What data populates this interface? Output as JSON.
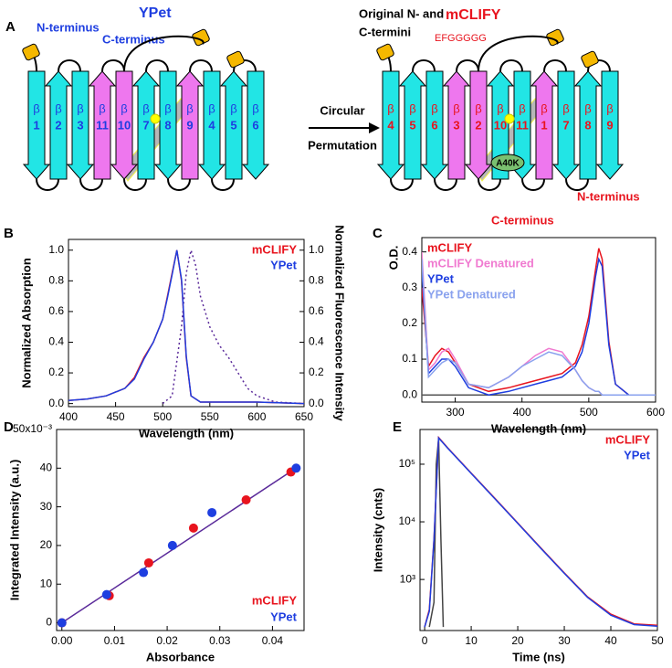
{
  "diagram": {
    "panel": "A",
    "beta": "β",
    "ypet": {
      "title": "YPet",
      "n_terminus": "N-terminus",
      "c_terminus": "C-terminus",
      "strands": [
        {
          "label": "1",
          "color": "#22e5e5"
        },
        {
          "label": "2",
          "color": "#22e5e5"
        },
        {
          "label": "3",
          "color": "#22e5e5"
        },
        {
          "label": "11",
          "color": "#ee77ee"
        },
        {
          "label": "10",
          "color": "#ee77ee"
        },
        {
          "label": "7",
          "color": "#22e5e5"
        },
        {
          "label": "8",
          "color": "#22e5e5"
        },
        {
          "label": "9",
          "color": "#ee77ee"
        },
        {
          "label": "4",
          "color": "#22e5e5"
        },
        {
          "label": "5",
          "color": "#22e5e5"
        },
        {
          "label": "6",
          "color": "#22e5e5"
        }
      ]
    },
    "arrow": {
      "line1": "Circular",
      "line2": "Permutation"
    },
    "mclify": {
      "title": "mCLIFY",
      "note_line1": "Original N- and",
      "note_line2": "C-termini",
      "linker": "EFGGGGG",
      "mutation": "A40K",
      "n_terminus": "N-terminus",
      "c_terminus": "C-terminus",
      "strands": [
        {
          "label": "4",
          "color": "#22e5e5"
        },
        {
          "label": "5",
          "color": "#22e5e5"
        },
        {
          "label": "6",
          "color": "#22e5e5"
        },
        {
          "label": "3",
          "color": "#ee77ee"
        },
        {
          "label": "2",
          "color": "#ee77ee"
        },
        {
          "label": "10",
          "color": "#22e5e5"
        },
        {
          "label": "11",
          "color": "#22e5e5"
        },
        {
          "label": "1",
          "color": "#ee77ee"
        },
        {
          "label": "7",
          "color": "#22e5e5"
        },
        {
          "label": "8",
          "color": "#22e5e5"
        },
        {
          "label": "9",
          "color": "#22e5e5"
        }
      ]
    }
  },
  "chart_data": [
    {
      "type": "line",
      "panel": "B",
      "ylabel": "Normalized Absorption",
      "y2label": "Normalized Fluorescence Intensity",
      "xlabel": "Wavelength (nm)",
      "xlim": [
        400,
        650
      ],
      "xticks": [
        400,
        450,
        500,
        550,
        600,
        650
      ],
      "ylim": [
        -0.02,
        1.07
      ],
      "yticks": [
        {
          "value": 0,
          "label": "0.0"
        },
        {
          "value": 0.2,
          "label": "0.2"
        },
        {
          "value": 0.4,
          "label": "0.4"
        },
        {
          "value": 0.6,
          "label": "0.6"
        },
        {
          "value": 0.8,
          "label": "0.8"
        },
        {
          "value": 1,
          "label": "1.0"
        }
      ],
      "y2lim": [
        -0.02,
        1.07
      ],
      "y2ticks": [
        {
          "value": 0,
          "label": "0.0"
        },
        {
          "value": 0.2,
          "label": "0.2"
        },
        {
          "value": 0.4,
          "label": "0.4"
        },
        {
          "value": 0.6,
          "label": "0.6"
        },
        {
          "value": 0.8,
          "label": "0.8"
        },
        {
          "value": 1,
          "label": "1.0"
        }
      ],
      "legend": "upper right",
      "series": [
        {
          "name": "mCLIFY",
          "color": "#e8141e",
          "x": [
            400,
            420,
            440,
            460,
            470,
            480,
            490,
            500,
            505,
            510,
            515,
            520,
            525,
            530,
            540,
            560,
            600,
            650
          ],
          "values": [
            0.02,
            0.03,
            0.05,
            0.1,
            0.17,
            0.3,
            0.4,
            0.55,
            0.7,
            0.85,
            1.0,
            0.8,
            0.3,
            0.05,
            0.01,
            0.01,
            0.01,
            0.0
          ]
        },
        {
          "name": "YPet",
          "color": "#1e3ee0",
          "x": [
            400,
            420,
            440,
            460,
            470,
            480,
            490,
            500,
            505,
            510,
            515,
            520,
            525,
            530,
            540,
            560,
            600,
            650
          ],
          "values": [
            0.02,
            0.03,
            0.05,
            0.1,
            0.16,
            0.29,
            0.4,
            0.55,
            0.69,
            0.84,
            1.0,
            0.81,
            0.31,
            0.05,
            0.01,
            0.01,
            0.01,
            0.0
          ]
        },
        {
          "color": "#5a2a9a",
          "dash": true,
          "axis": "y2",
          "x": [
            500,
            510,
            520,
            525,
            530,
            535,
            540,
            550,
            560,
            570,
            580,
            590,
            600,
            620,
            650
          ],
          "values": [
            0.0,
            0.05,
            0.5,
            0.85,
            1.0,
            0.9,
            0.7,
            0.5,
            0.38,
            0.3,
            0.2,
            0.1,
            0.05,
            0.01,
            0.0
          ]
        }
      ]
    },
    {
      "type": "line",
      "panel": "C",
      "ylabel": "O.D.",
      "xlabel": "Wavelength (nm)",
      "xlim": [
        250,
        600
      ],
      "xticks": [
        300,
        400,
        500,
        600
      ],
      "ylim": [
        -0.02,
        0.44
      ],
      "yticks": [
        {
          "value": 0,
          "label": "0.0"
        },
        0.1,
        0.2,
        0.3,
        0.4
      ],
      "legend": "upper left",
      "x": [
        250,
        260,
        270,
        280,
        290,
        300,
        320,
        350,
        380,
        400,
        420,
        440,
        460,
        480,
        490,
        500,
        510,
        515,
        520,
        530,
        540,
        560,
        600
      ],
      "series": [
        {
          "name": "mCLIFY",
          "color": "#e8141e",
          "values": [
            0.3,
            0.08,
            0.11,
            0.13,
            0.12,
            0.09,
            0.03,
            0.01,
            0.02,
            0.03,
            0.04,
            0.05,
            0.06,
            0.09,
            0.14,
            0.22,
            0.35,
            0.41,
            0.38,
            0.15,
            0.03,
            0.0,
            0.0
          ]
        },
        {
          "name": "mCLIFY Denatured",
          "color": "#f07ad0",
          "values": [
            0.4,
            0.07,
            0.09,
            0.12,
            0.13,
            0.1,
            0.03,
            0.02,
            0.05,
            0.08,
            0.11,
            0.13,
            0.12,
            0.07,
            0.04,
            0.02,
            0.01,
            0.01,
            0.0,
            0.0,
            0.0,
            0.0,
            0.0
          ]
        },
        {
          "name": "YPet",
          "color": "#1e3ee0",
          "values": [
            0.35,
            0.06,
            0.08,
            0.1,
            0.1,
            0.08,
            0.02,
            0.0,
            0.01,
            0.02,
            0.03,
            0.04,
            0.05,
            0.08,
            0.12,
            0.2,
            0.33,
            0.38,
            0.36,
            0.14,
            0.03,
            0.0,
            0.0
          ]
        },
        {
          "name": "YPet Denatured",
          "color": "#8aa2ee",
          "values": [
            0.38,
            0.05,
            0.07,
            0.09,
            0.1,
            0.09,
            0.03,
            0.02,
            0.05,
            0.08,
            0.1,
            0.12,
            0.11,
            0.07,
            0.04,
            0.02,
            0.01,
            0.01,
            0.0,
            0.0,
            0.0,
            0.0,
            0.0
          ]
        },
        {
          "color": "#555555",
          "x": [
            250,
            600
          ],
          "values": [
            0.0,
            0.0
          ]
        }
      ]
    },
    {
      "type": "scatter",
      "panel": "D",
      "ylabel": "Integrated Intensity (a.u.)",
      "xlabel": "Absorbance",
      "xlim": [
        -0.001,
        0.046
      ],
      "xticks": [
        {
          "value": 0,
          "label": "0.00"
        },
        0.01,
        0.02,
        0.03,
        0.04
      ],
      "ylim": [
        -2,
        50
      ],
      "yticks": [
        0,
        10,
        20,
        30,
        40,
        {
          "value": 50,
          "label": "50x10⁻³"
        }
      ],
      "legend": "lower right",
      "series": [
        {
          "name": "mCLIFY",
          "color": "#e8141e",
          "x": [
            0,
            0.009,
            0.0165,
            0.025,
            0.035,
            0.0435
          ],
          "values": [
            0,
            7,
            15.5,
            24.5,
            31.8,
            39
          ]
        },
        {
          "name": "YPet",
          "color": "#1e3ee0",
          "x": [
            0,
            0.0085,
            0.0155,
            0.021,
            0.0285,
            0.0445
          ],
          "values": [
            0,
            7.3,
            13,
            20,
            28.5,
            40
          ]
        },
        {
          "color": "#5a2a9a",
          "style": "line",
          "x": [
            0,
            0.045
          ],
          "values": [
            0,
            40.5
          ]
        }
      ]
    },
    {
      "type": "line",
      "panel": "E",
      "ylabel": "Intensity (cnts)",
      "xlabel": "Time (ns)",
      "log_y": true,
      "xlim": [
        -1,
        50
      ],
      "xticks": [
        0,
        10,
        20,
        30,
        40,
        50
      ],
      "ylim": [
        130,
        400000
      ],
      "yticks": [
        {
          "value": 1000,
          "label": "10³"
        },
        {
          "value": 10000,
          "label": "10⁴"
        },
        {
          "value": 100000,
          "label": "10⁵"
        }
      ],
      "legend": "upper right",
      "series": [
        {
          "name": "mCLIFY",
          "color": "#e8141e",
          "x": [
            0,
            1,
            2,
            3,
            5,
            10,
            15,
            20,
            25,
            30,
            35,
            40,
            45,
            50
          ],
          "values": [
            150,
            300,
            5000,
            290000,
            190000,
            70000,
            26000,
            9500,
            3500,
            1300,
            500,
            250,
            170,
            160
          ]
        },
        {
          "name": "YPet",
          "color": "#1e3ee0",
          "x": [
            0,
            1,
            2,
            3,
            5,
            10,
            15,
            20,
            25,
            30,
            35,
            40,
            45,
            50
          ],
          "values": [
            150,
            280,
            4800,
            285000,
            188000,
            69000,
            25500,
            9400,
            3450,
            1280,
            490,
            240,
            165,
            155
          ]
        },
        {
          "color": "#444444",
          "x": [
            1,
            2,
            2.5,
            3,
            3.5,
            4
          ],
          "values": [
            150,
            400,
            100000,
            280000,
            5000,
            150
          ]
        }
      ]
    }
  ]
}
